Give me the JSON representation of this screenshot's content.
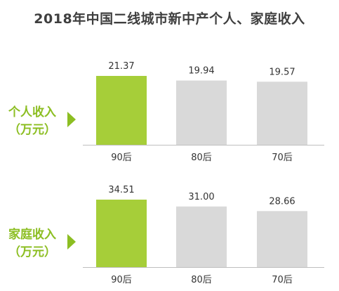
{
  "title": "2018年中国二线城市新中产个人、家庭收入",
  "colors": {
    "highlight": "#a6ce39",
    "base": "#d9d9d9",
    "label": "#8cbe22"
  },
  "chart_data": [
    {
      "type": "bar",
      "label_line1": "个人收入",
      "label_line2": "（万元）",
      "categories": [
        "90后",
        "80后",
        "70后"
      ],
      "values": [
        21.37,
        19.94,
        19.57
      ],
      "value_labels": [
        "21.37",
        "19.94",
        "19.57"
      ]
    },
    {
      "type": "bar",
      "label_line1": "家庭收入",
      "label_line2": "（万元）",
      "categories": [
        "90后",
        "80后",
        "70后"
      ],
      "values": [
        34.51,
        31.0,
        28.66
      ],
      "value_labels": [
        "34.51",
        "31.00",
        "28.66"
      ]
    }
  ]
}
